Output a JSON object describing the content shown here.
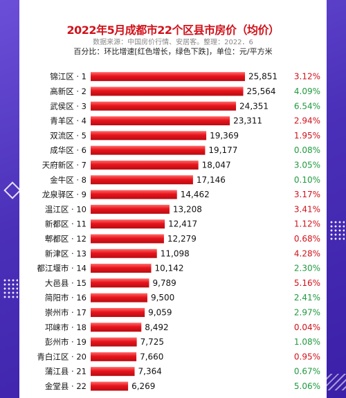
{
  "title": "2022年5月成都市22个区县市房价（均价）",
  "source": "数据来源：中国房价行情、安居客。整理：2022．6",
  "note": "百分比：环比增速[红色增长，绿色下跌]，单位：元/平方米",
  "colors": {
    "bar": "#e8141c",
    "up": "#d0121b",
    "down": "#1f9a3e",
    "title": "#d0121b"
  },
  "chart_data": {
    "type": "bar",
    "orientation": "horizontal",
    "title": "2022年5月成都市22个区县市房价（均价）",
    "categories": [
      "锦江区 · 1",
      "高新区 · 2",
      "武侯区 · 3",
      "青羊区 · 4",
      "双流区 · 5",
      "成华区 · 6",
      "天府新区 · 7",
      "金牛区 · 8",
      "龙泉驿区 · 9",
      "温江区 · 10",
      "新都区 · 11",
      "郫都区 · 12",
      "新津区 · 13",
      "都江堰市 · 14",
      "大邑县 · 15",
      "简阳市 · 16",
      "崇州市 · 17",
      "邛崃市 · 18",
      "彭州市 · 19",
      "青白江区 · 20",
      "蒲江县 · 21",
      "金堂县 · 22"
    ],
    "values": [
      25851,
      25564,
      24351,
      23311,
      19369,
      19177,
      18047,
      17146,
      14462,
      13208,
      12417,
      12279,
      11098,
      10142,
      9789,
      9500,
      9059,
      8492,
      7725,
      7660,
      7364,
      6269
    ],
    "value_labels": [
      "25,851",
      "25,564",
      "24,351",
      "23,311",
      "19,369",
      "19,177",
      "18,047",
      "17,146",
      "14,462",
      "13,208",
      "12,417",
      "12,279",
      "11,098",
      "10,142",
      "9,789",
      "9,500",
      "9,059",
      "8,492",
      "7,725",
      "7,660",
      "7,364",
      "6,269"
    ],
    "mom_change": [
      "3.12%",
      "4.09%",
      "6.54%",
      "2.94%",
      "1.95%",
      "0.08%",
      "3.05%",
      "0.10%",
      "3.17%",
      "3.41%",
      "1.12%",
      "0.68%",
      "4.28%",
      "2.30%",
      "5.16%",
      "2.41%",
      "2.97%",
      "0.04%",
      "1.08%",
      "0.95%",
      "0.67%",
      "5.06%"
    ],
    "mom_direction": [
      "up",
      "down",
      "down",
      "up",
      "up",
      "down",
      "down",
      "down",
      "up",
      "up",
      "up",
      "up",
      "up",
      "down",
      "up",
      "down",
      "down",
      "up",
      "down",
      "up",
      "down",
      "down"
    ]
  }
}
